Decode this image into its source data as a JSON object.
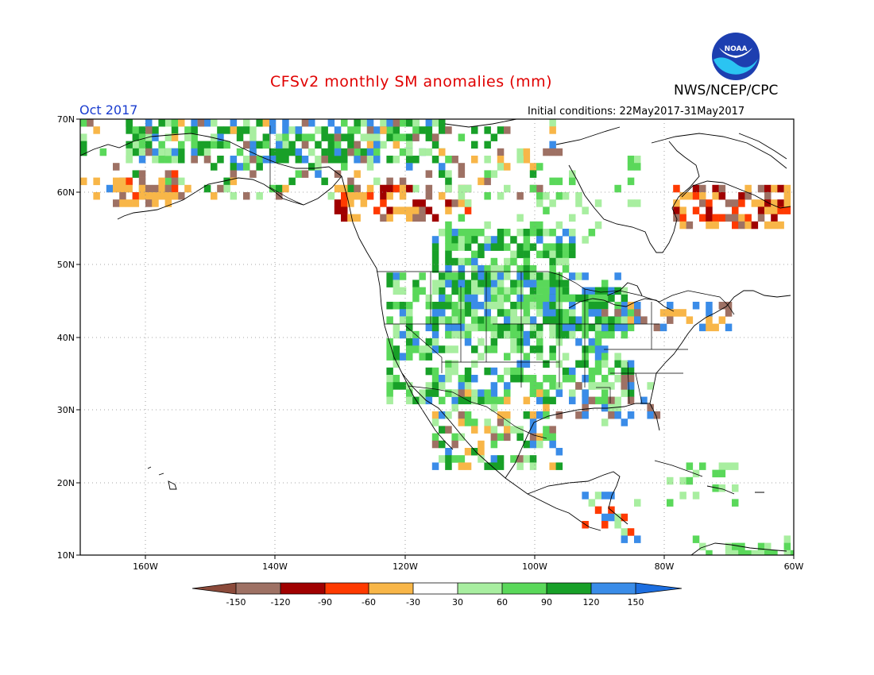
{
  "header": {
    "title": "CFSv2 monthly SM anomalies (mm)",
    "agency": "NWS/NCEP/CPC",
    "month": "Oct 2017",
    "initial_conditions": "Initial conditions: 22May2017-31May2017",
    "logo_text": "NOAA"
  },
  "map": {
    "lat_labels": [
      "70N",
      "60N",
      "50N",
      "40N",
      "30N",
      "20N",
      "10N"
    ],
    "lon_labels": [
      "160W",
      "140W",
      "120W",
      "100W",
      "80W",
      "60W"
    ],
    "colors": {
      "lt_m150": "#8b4a3a",
      "m150_m120": "#9e7164",
      "m120_m90": "#a00000",
      "m90_m60": "#ff3a00",
      "m60_m30": "#f8b648",
      "m30_30": "#ffffff",
      "p30_60": "#a8eea0",
      "p60_90": "#5ad85a",
      "p90_120": "#18a028",
      "p120_150": "#3a8ce8",
      "gt_150": "#1c6ee0"
    }
  },
  "colorbar": {
    "labels": [
      "-150",
      "-120",
      "-90",
      "-60",
      "-30",
      "30",
      "60",
      "90",
      "120",
      "150"
    ]
  }
}
